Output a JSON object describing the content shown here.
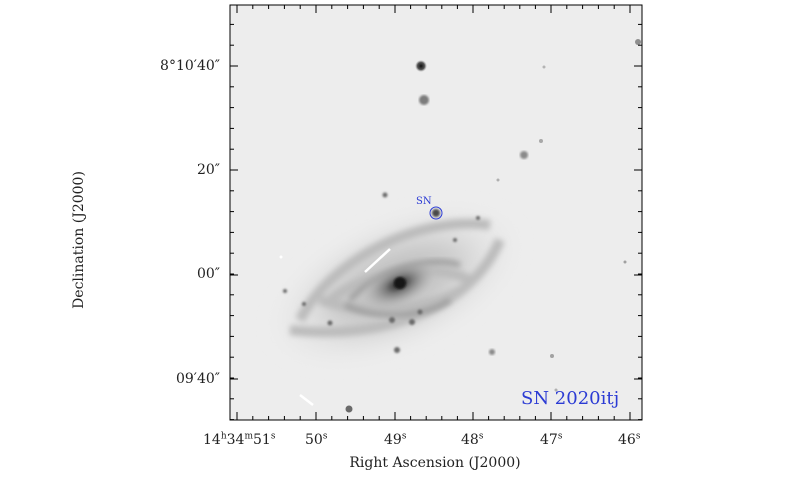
{
  "axes": {
    "xlabel": "Right Ascension (J2000)",
    "ylabel": "Declination (J2000)",
    "x_ticks": [
      {
        "base": "14",
        "h": "h",
        "m": "34",
        "mu": "m",
        "s": "51",
        "su": "s"
      },
      {
        "s": "50",
        "su": "s"
      },
      {
        "s": "49",
        "su": "s"
      },
      {
        "s": "48",
        "su": "s"
      },
      {
        "s": "47",
        "su": "s"
      },
      {
        "s": "46",
        "su": "s"
      }
    ],
    "y_ticks": [
      "8°10′40″",
      "20″",
      "00″",
      "09′40″"
    ]
  },
  "annotations": {
    "target_label": "SN",
    "title": "SN 2020itj"
  },
  "colors": {
    "annotation": "#2b3bd4",
    "background_sky": "#ededed"
  }
}
